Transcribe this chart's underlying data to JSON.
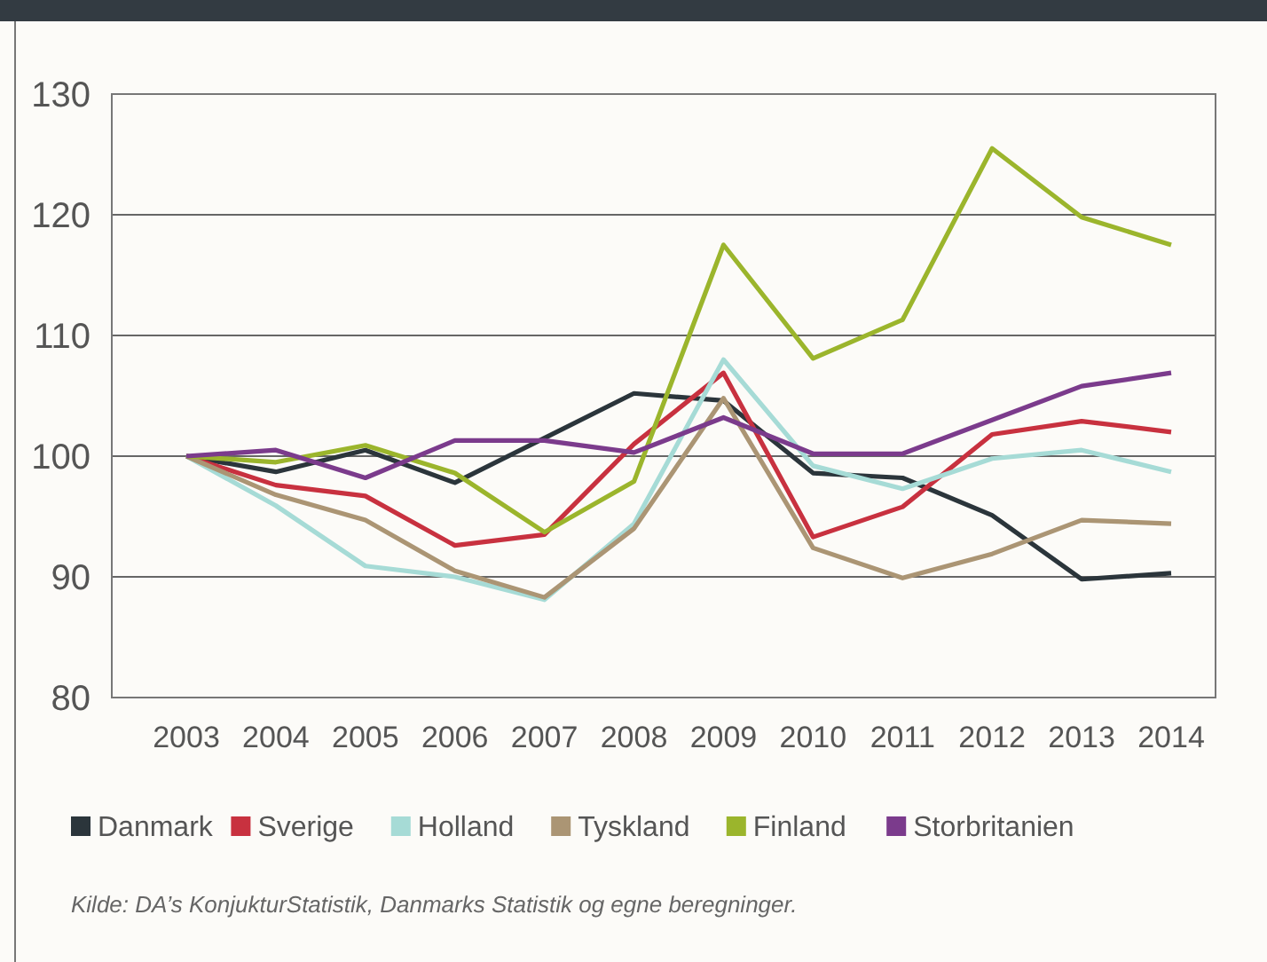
{
  "chart_data": {
    "type": "line",
    "categories": [
      "2003",
      "2004",
      "2005",
      "2006",
      "2007",
      "2008",
      "2009",
      "2010",
      "2011",
      "2012",
      "2013",
      "2014"
    ],
    "series": [
      {
        "name": "Danmark",
        "color": "#2b353b",
        "values": [
          100,
          98.7,
          100.5,
          97.8,
          101.5,
          105.2,
          104.6,
          98.6,
          98.2,
          95.1,
          89.8,
          90.3
        ]
      },
      {
        "name": "Sverige",
        "color": "#c8313f",
        "values": [
          100,
          97.6,
          96.7,
          92.6,
          93.5,
          101,
          106.9,
          93.3,
          95.8,
          101.8,
          102.9,
          102
        ]
      },
      {
        "name": "Holland",
        "color": "#a6dbd6",
        "values": [
          100,
          95.9,
          90.9,
          90,
          88.1,
          94.4,
          108,
          99.2,
          97.3,
          99.8,
          100.5,
          98.7
        ]
      },
      {
        "name": "Tyskland",
        "color": "#ab9574",
        "values": [
          100,
          96.8,
          94.7,
          90.5,
          88.3,
          94,
          104.8,
          92.4,
          89.9,
          91.9,
          94.7,
          94.4
        ]
      },
      {
        "name": "Finland",
        "color": "#9bb52c",
        "values": [
          100,
          99.5,
          100.9,
          98.6,
          93.7,
          97.9,
          117.5,
          108.1,
          111.3,
          125.5,
          119.8,
          117.5
        ]
      },
      {
        "name": "Storbritanien",
        "color": "#7b3b8c",
        "values": [
          100,
          100.5,
          98.2,
          101.3,
          101.3,
          100.3,
          103.2,
          100.2,
          100.2,
          103,
          105.8,
          106.9
        ]
      }
    ],
    "ylim": [
      80,
      130
    ],
    "yticks": [
      80,
      90,
      100,
      110,
      120,
      130
    ],
    "grid": "y",
    "legend": "bottom",
    "marker": "none",
    "line_style": "solid",
    "annotations": [
      "Kilde: DA’s KonjukturStatistik, Danmarks Statistik og egne beregninger."
    ]
  }
}
